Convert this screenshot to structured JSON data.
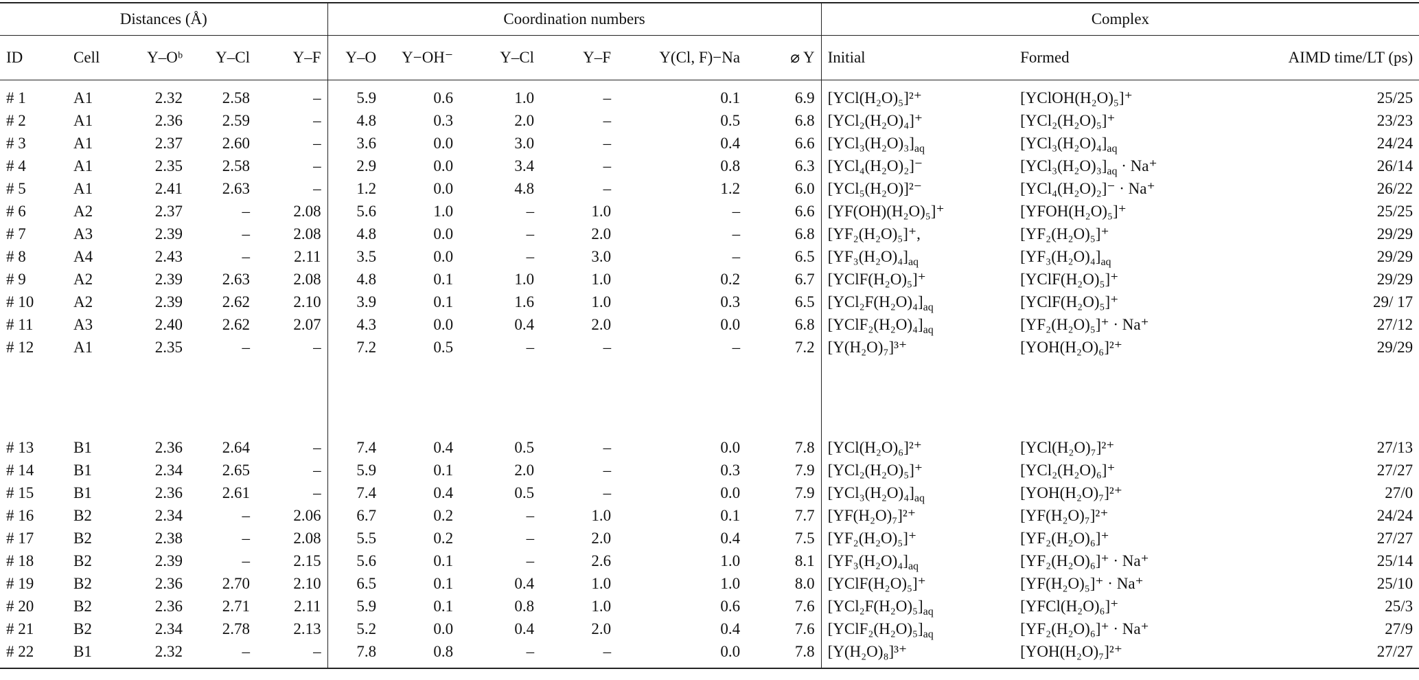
{
  "table": {
    "column_groups": [
      "Distances (Å)",
      "Coordination numbers",
      "Complex"
    ],
    "columns": [
      "ID",
      "Cell",
      "Y–Oᵇ",
      "Y–Cl",
      "Y–F",
      "Y–O",
      "Y−OH⁻",
      "Y–Cl",
      "Y–F",
      "Y(Cl, F)−Na",
      "⌀ Y",
      "Initial",
      "Formed",
      "AIMD time/LT (ps)"
    ],
    "groups": [
      {
        "rows": [
          [
            "# 1",
            "A1",
            "2.32",
            "2.58",
            "–",
            "5.9",
            "0.6",
            "1.0",
            "–",
            "0.1",
            "6.9",
            "[YCl(H₂O)₅]²⁺",
            "[YClOH(H₂O)₅]⁺",
            "25/25"
          ],
          [
            "# 2",
            "A1",
            "2.36",
            "2.59",
            "–",
            "4.8",
            "0.3",
            "2.0",
            "–",
            "0.5",
            "6.8",
            "[YCl₂(H₂O)₄]⁺",
            "[YCl₂(H₂O)₅]⁺",
            "23/23"
          ],
          [
            "# 3",
            "A1",
            "2.37",
            "2.60",
            "–",
            "3.6",
            "0.0",
            "3.0",
            "–",
            "0.4",
            "6.6",
            "[YCl₃(H₂O)₃]aq",
            "[YCl₃(H₂O)₄]aq",
            "24/24"
          ],
          [
            "# 4",
            "A1",
            "2.35",
            "2.58",
            "–",
            "2.9",
            "0.0",
            "3.4",
            "–",
            "0.8",
            "6.3",
            "[YCl₄(H₂O)₂]⁻",
            "[YCl₃(H₂O)₃]aq · Na⁺",
            "26/14"
          ],
          [
            "# 5",
            "A1",
            "2.41",
            "2.63",
            "–",
            "1.2",
            "0.0",
            "4.8",
            "–",
            "1.2",
            "6.0",
            "[YCl₅(H₂O)]²⁻",
            "[YCl₄(H₂O)₂]⁻ · Na⁺",
            "26/22"
          ],
          [
            "# 6",
            "A2",
            "2.37",
            "–",
            "2.08",
            "5.6",
            "1.0",
            "–",
            "1.0",
            "–",
            "6.6",
            "[YF(OH)(H₂O)₅]⁺",
            "[YFOH(H₂O)₅]⁺",
            "25/25"
          ],
          [
            "# 7",
            "A3",
            "2.39",
            "–",
            "2.08",
            "4.8",
            "0.0",
            "–",
            "2.0",
            "–",
            "6.8",
            "[YF₂(H₂O)₅]⁺,",
            "[YF₂(H₂O)₅]⁺",
            "29/29"
          ],
          [
            "# 8",
            "A4",
            "2.43",
            "–",
            "2.11",
            "3.5",
            "0.0",
            "–",
            "3.0",
            "–",
            "6.5",
            "[YF₃(H₂O)₄]aq",
            "[YF₃(H₂O)₄]aq",
            "29/29"
          ],
          [
            "# 9",
            "A2",
            "2.39",
            "2.63",
            "2.08",
            "4.8",
            "0.1",
            "1.0",
            "1.0",
            "0.2",
            "6.7",
            "[YClF(H₂O)₅]⁺",
            "[YClF(H₂O)₅]⁺",
            "29/29"
          ],
          [
            "# 10",
            "A2",
            "2.39",
            "2.62",
            "2.10",
            "3.9",
            "0.1",
            "1.6",
            "1.0",
            "0.3",
            "6.5",
            "[YCl₂F(H₂O)₄]aq",
            "[YClF(H₂O)₅]⁺",
            "29/ 17"
          ],
          [
            "# 11",
            "A3",
            "2.40",
            "2.62",
            "2.07",
            "4.3",
            "0.0",
            "0.4",
            "2.0",
            "0.0",
            "6.8",
            "[YClF₂(H₂O)₄]aq",
            "[YF₂(H₂O)₅]⁺ · Na⁺",
            "27/12"
          ],
          [
            "# 12",
            "A1",
            "2.35",
            "–",
            "–",
            "7.2",
            "0.5",
            "–",
            "–",
            "–",
            "7.2",
            "[Y(H₂O)₇]³⁺",
            "[YOH(H₂O)₆]²⁺",
            "29/29"
          ]
        ]
      },
      {
        "rows": [
          [
            "# 13",
            "B1",
            "2.36",
            "2.64",
            "–",
            "7.4",
            "0.4",
            "0.5",
            "–",
            "0.0",
            "7.8",
            "[YCl(H₂O)₆]²⁺",
            "[YCl(H₂O)₇]²⁺",
            "27/13"
          ],
          [
            "# 14",
            "B1",
            "2.34",
            "2.65",
            "–",
            "5.9",
            "0.1",
            "2.0",
            "–",
            "0.3",
            "7.9",
            "[YCl₂(H₂O)₅]⁺",
            "[YCl₂(H₂O)₆]⁺",
            "27/27"
          ],
          [
            "# 15",
            "B1",
            "2.36",
            "2.61",
            "–",
            "7.4",
            "0.4",
            "0.5",
            "–",
            "0.0",
            "7.9",
            "[YCl₃(H₂O)₄]aq",
            "[YOH(H₂O)₇]²⁺",
            "27/0"
          ],
          [
            "# 16",
            "B2",
            "2.34",
            "–",
            "2.06",
            "6.7",
            "0.2",
            "–",
            "1.0",
            "0.1",
            "7.7",
            "[YF(H₂O)₇]²⁺",
            "[YF(H₂O)₇]²⁺",
            "24/24"
          ],
          [
            "# 17",
            "B2",
            "2.38",
            "–",
            "2.08",
            "5.5",
            "0.2",
            "–",
            "2.0",
            "0.4",
            "7.5",
            "[YF₂(H₂O)₅]⁺",
            "[YF₂(H₂O)₆]⁺",
            "27/27"
          ],
          [
            "# 18",
            "B2",
            "2.39",
            "–",
            "2.15",
            "5.6",
            "0.1",
            "–",
            "2.6",
            "1.0",
            "8.1",
            "[YF₃(H₂O)₄]aq",
            "[YF₂(H₂O)₆]⁺ · Na⁺",
            "25/14"
          ],
          [
            "# 19",
            "B2",
            "2.36",
            "2.70",
            "2.10",
            "6.5",
            "0.1",
            "0.4",
            "1.0",
            "1.0",
            "8.0",
            "[YClF(H₂O)₅]⁺",
            "[YF(H₂O)₅]⁺ · Na⁺",
            "25/10"
          ],
          [
            "# 20",
            "B2",
            "2.36",
            "2.71",
            "2.11",
            "5.9",
            "0.1",
            "0.8",
            "1.0",
            "0.6",
            "7.6",
            "[YCl₂F(H₂O)₅]aq",
            "[YFCl(H₂O)₆]⁺",
            "25/3"
          ],
          [
            "# 21",
            "B2",
            "2.34",
            "2.78",
            "2.13",
            "5.2",
            "0.0",
            "0.4",
            "2.0",
            "0.4",
            "7.6",
            "[YClF₂(H₂O)₅]aq",
            "[YF₂(H₂O)₆]⁺ · Na⁺",
            "27/9"
          ],
          [
            "# 22",
            "B1",
            "2.32",
            "–",
            "–",
            "7.8",
            "0.8",
            "–",
            "–",
            "0.0",
            "7.8",
            "[Y(H₂O)₈]³⁺",
            "[YOH(H₂O)₇]²⁺",
            "27/27"
          ]
        ]
      }
    ]
  }
}
